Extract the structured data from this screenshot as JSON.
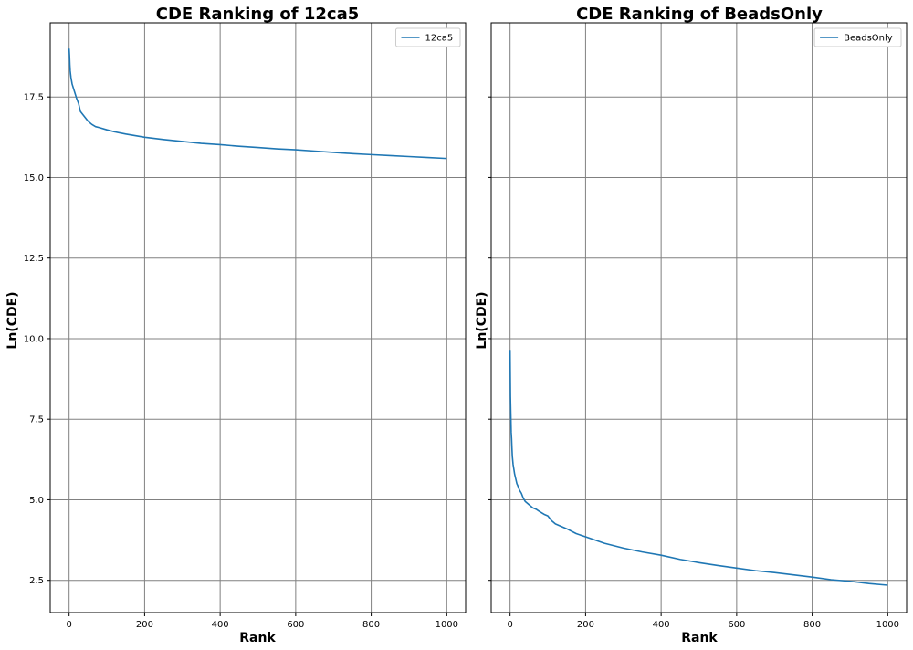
{
  "figure": {
    "background": "#ffffff"
  },
  "chart_data": [
    {
      "type": "line",
      "title": "CDE Ranking of 12ca5",
      "xlabel": "Rank",
      "ylabel": "Ln(CDE)",
      "xlim": [
        -50,
        1050
      ],
      "ylim": [
        1.5,
        19.8
      ],
      "xticks": [
        0,
        200,
        400,
        600,
        800,
        1000
      ],
      "xtick_labels": [
        "0",
        "200",
        "400",
        "600",
        "800",
        "1000"
      ],
      "yticks": [
        2.5,
        5.0,
        7.5,
        10.0,
        12.5,
        15.0,
        17.5
      ],
      "ytick_labels": [
        "2.5",
        "5.0",
        "7.5",
        "10.0",
        "12.5",
        "15.0",
        "17.5"
      ],
      "grid": true,
      "legend_position": "top-right",
      "series": [
        {
          "name": "12ca5",
          "color": "#1f77b4",
          "x": [
            0,
            1,
            2,
            3,
            5,
            8,
            12,
            16,
            20,
            25,
            30,
            40,
            50,
            60,
            70,
            80,
            100,
            120,
            150,
            200,
            250,
            300,
            350,
            400,
            450,
            500,
            550,
            600,
            650,
            700,
            750,
            800,
            850,
            900,
            950,
            1000
          ],
          "y": [
            19.0,
            18.8,
            18.5,
            18.3,
            18.1,
            17.9,
            17.75,
            17.6,
            17.45,
            17.3,
            17.05,
            16.9,
            16.75,
            16.65,
            16.58,
            16.55,
            16.48,
            16.42,
            16.35,
            16.25,
            16.18,
            16.12,
            16.06,
            16.02,
            15.97,
            15.93,
            15.89,
            15.86,
            15.82,
            15.78,
            15.74,
            15.71,
            15.68,
            15.65,
            15.62,
            15.59
          ]
        }
      ]
    },
    {
      "type": "line",
      "title": "CDE Ranking of BeadsOnly",
      "xlabel": "Rank",
      "ylabel": "Ln(CDE)",
      "xlim": [
        -50,
        1050
      ],
      "ylim": [
        1.5,
        19.8
      ],
      "xticks": [
        0,
        200,
        400,
        600,
        800,
        1000
      ],
      "xtick_labels": [
        "0",
        "200",
        "400",
        "600",
        "800",
        "1000"
      ],
      "yticks": [
        2.5,
        5.0,
        7.5,
        10.0,
        12.5,
        15.0,
        17.5
      ],
      "ytick_labels": [
        "2.5",
        "5.0",
        "7.5",
        "10.0",
        "12.5",
        "15.0",
        "17.5"
      ],
      "grid": true,
      "legend_position": "top-right",
      "series": [
        {
          "name": "BeadsOnly",
          "color": "#1f77b4",
          "x": [
            0,
            1,
            2,
            3,
            4,
            5,
            6,
            8,
            10,
            12,
            15,
            18,
            20,
            25,
            30,
            35,
            40,
            50,
            60,
            70,
            80,
            90,
            100,
            110,
            120,
            150,
            175,
            200,
            250,
            300,
            350,
            400,
            450,
            500,
            550,
            600,
            650,
            700,
            750,
            800,
            850,
            900,
            950,
            1000
          ],
          "y": [
            9.65,
            8.2,
            7.65,
            7.1,
            6.9,
            6.6,
            6.35,
            6.1,
            5.95,
            5.8,
            5.65,
            5.5,
            5.45,
            5.3,
            5.2,
            5.05,
            4.95,
            4.85,
            4.75,
            4.7,
            4.62,
            4.55,
            4.5,
            4.35,
            4.25,
            4.1,
            3.95,
            3.85,
            3.65,
            3.5,
            3.38,
            3.28,
            3.15,
            3.05,
            2.96,
            2.88,
            2.8,
            2.74,
            2.67,
            2.6,
            2.52,
            2.47,
            2.4,
            2.35
          ]
        }
      ]
    }
  ]
}
